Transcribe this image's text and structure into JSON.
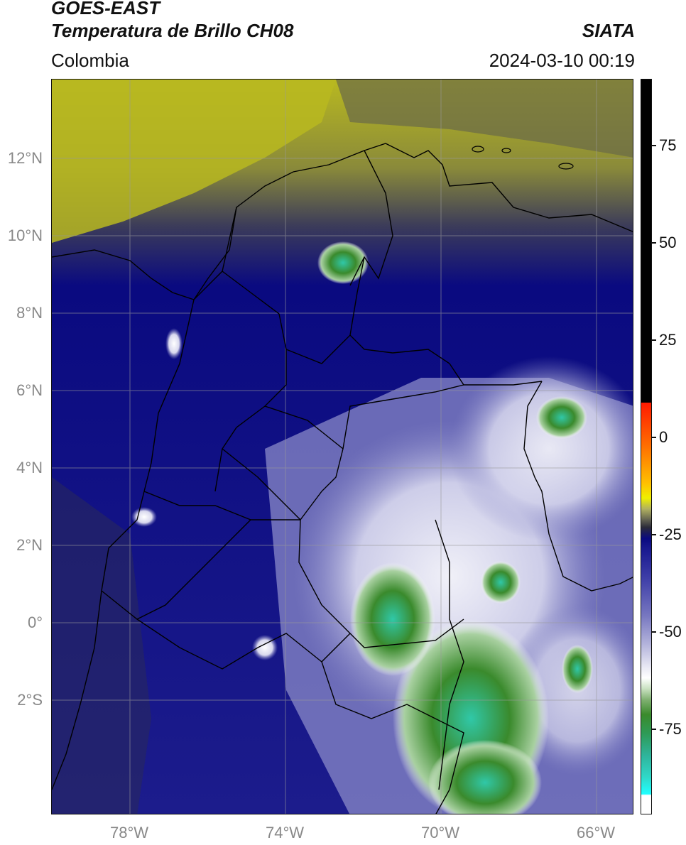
{
  "header": {
    "satellite": "GOES-EAST",
    "product": "Temperatura de Brillo CH08",
    "region": "Colombia",
    "source": "SIATA",
    "datetime": "2024-03-10 00:19"
  },
  "axes": {
    "lat_labels": [
      "12°N",
      "10°N",
      "8°N",
      "6°N",
      "4°N",
      "2°N",
      "0°",
      "2°S"
    ],
    "lon_labels": [
      "78°W",
      "74°W",
      "70°W",
      "66°W"
    ]
  },
  "colorbar": {
    "ticks": [
      "75",
      "50",
      "25",
      "0",
      "-25",
      "-50",
      "-75"
    ]
  },
  "colors": {
    "dry_upper": "#b8b820",
    "mid": "#0a0a80",
    "cold": "#ffffff",
    "convective": "#3a8a2c",
    "very_cold": "#30d8c8"
  }
}
